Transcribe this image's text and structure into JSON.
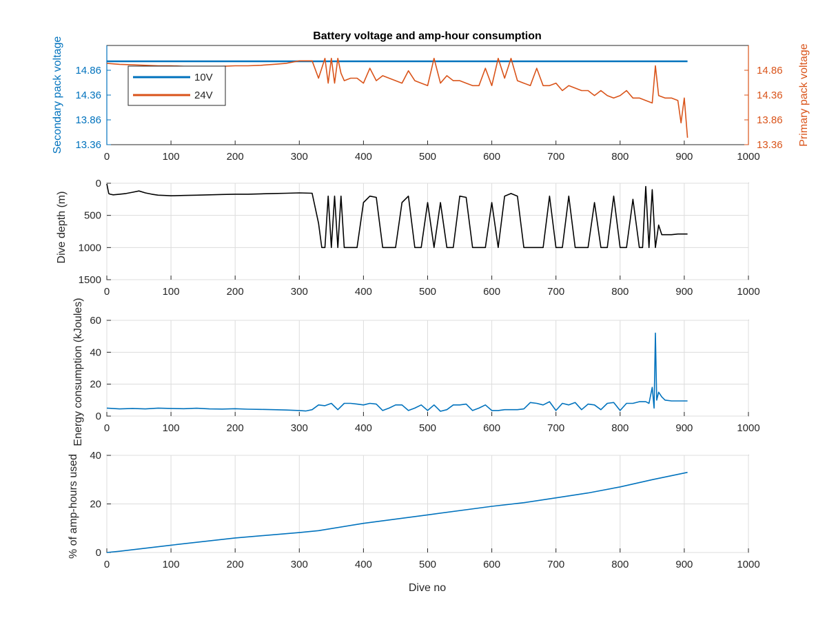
{
  "colors": {
    "blue": "#0072BD",
    "orange": "#D95319",
    "black": "#000000",
    "grid": "#dcdcdc",
    "axis": "#262626"
  },
  "chart_data": [
    {
      "id": "voltage",
      "type": "line",
      "title": "Battery voltage and amp-hour consumption",
      "xlabel": "",
      "ylabel_left": "Secondary pack voltage",
      "ylabel_right": "Primary pack voltage",
      "xlim": [
        0,
        1000
      ],
      "ylim": [
        13.36,
        15.36
      ],
      "x_ticks": [
        0,
        100,
        200,
        300,
        400,
        500,
        600,
        700,
        800,
        900,
        1000
      ],
      "y_ticks": [
        13.36,
        13.86,
        14.36,
        14.86
      ],
      "y_tick_labels": [
        "13.36",
        "13.86",
        "14.36",
        "14.86"
      ],
      "grid": false,
      "legend": "top-left",
      "series": [
        {
          "name": "10V",
          "axis": "left",
          "color": "#0072BD",
          "x": [
            0,
            905
          ],
          "y": [
            15.04,
            15.04
          ]
        },
        {
          "name": "24V",
          "axis": "right",
          "color": "#D95319",
          "x": [
            0,
            20,
            40,
            60,
            80,
            100,
            120,
            140,
            160,
            180,
            200,
            220,
            240,
            260,
            280,
            300,
            320,
            330,
            340,
            345,
            350,
            355,
            360,
            365,
            370,
            380,
            390,
            400,
            410,
            420,
            430,
            440,
            450,
            460,
            470,
            480,
            490,
            500,
            510,
            520,
            530,
            540,
            550,
            560,
            570,
            580,
            590,
            600,
            610,
            620,
            630,
            640,
            650,
            660,
            670,
            680,
            690,
            700,
            710,
            720,
            730,
            740,
            750,
            760,
            770,
            780,
            790,
            800,
            810,
            820,
            830,
            840,
            850,
            855,
            860,
            870,
            880,
            890,
            895,
            900,
            905
          ],
          "y": [
            15.0,
            14.98,
            14.97,
            14.96,
            14.95,
            14.95,
            14.94,
            14.94,
            14.94,
            14.94,
            14.95,
            14.95,
            14.96,
            14.98,
            15.0,
            15.05,
            15.05,
            14.7,
            15.1,
            14.6,
            15.1,
            14.6,
            15.1,
            14.8,
            14.65,
            14.7,
            14.7,
            14.6,
            14.9,
            14.65,
            14.75,
            14.7,
            14.65,
            14.6,
            14.85,
            14.65,
            14.6,
            14.55,
            15.1,
            14.6,
            14.75,
            14.65,
            14.65,
            14.6,
            14.55,
            14.55,
            14.9,
            14.55,
            15.1,
            14.7,
            15.1,
            14.65,
            14.6,
            14.55,
            14.9,
            14.55,
            14.55,
            14.6,
            14.45,
            14.55,
            14.5,
            14.45,
            14.45,
            14.35,
            14.45,
            14.35,
            14.3,
            14.35,
            14.45,
            14.3,
            14.3,
            14.25,
            14.2,
            14.95,
            14.35,
            14.3,
            14.3,
            14.25,
            13.8,
            14.3,
            13.5
          ]
        }
      ]
    },
    {
      "id": "depth",
      "type": "line",
      "xlabel": "",
      "ylabel": "Dive depth (m)",
      "xlim": [
        0,
        1000
      ],
      "ylim": [
        0,
        1500
      ],
      "y_reversed": true,
      "x_ticks": [
        0,
        100,
        200,
        300,
        400,
        500,
        600,
        700,
        800,
        900,
        1000
      ],
      "y_ticks": [
        0,
        500,
        1000,
        1500
      ],
      "grid": true,
      "series": [
        {
          "name": "",
          "color": "#000000",
          "x": [
            0,
            3,
            5,
            10,
            20,
            30,
            40,
            50,
            60,
            70,
            80,
            90,
            100,
            120,
            140,
            160,
            180,
            200,
            220,
            240,
            260,
            280,
            300,
            320,
            330,
            335,
            340,
            345,
            350,
            355,
            360,
            365,
            370,
            380,
            390,
            400,
            410,
            420,
            430,
            440,
            450,
            460,
            470,
            480,
            490,
            500,
            510,
            520,
            530,
            540,
            550,
            560,
            570,
            580,
            590,
            600,
            610,
            620,
            630,
            640,
            650,
            660,
            670,
            680,
            690,
            700,
            710,
            720,
            730,
            740,
            750,
            760,
            770,
            780,
            790,
            800,
            810,
            820,
            830,
            835,
            840,
            845,
            850,
            855,
            860,
            865,
            870,
            880,
            890,
            905
          ],
          "y": [
            10,
            160,
            170,
            180,
            170,
            160,
            140,
            120,
            150,
            170,
            185,
            190,
            195,
            190,
            185,
            180,
            175,
            170,
            170,
            165,
            160,
            155,
            150,
            155,
            620,
            1000,
            1000,
            200,
            1000,
            200,
            1000,
            200,
            1000,
            1000,
            1000,
            300,
            200,
            220,
            1000,
            1000,
            1000,
            300,
            200,
            1000,
            1000,
            300,
            1000,
            300,
            1000,
            1000,
            200,
            220,
            1000,
            1000,
            1000,
            300,
            1000,
            200,
            160,
            200,
            1000,
            1000,
            1000,
            1000,
            200,
            1000,
            1000,
            200,
            1000,
            1000,
            1000,
            300,
            1000,
            1000,
            200,
            1000,
            1000,
            250,
            1000,
            1000,
            50,
            1000,
            100,
            1000,
            650,
            800,
            800,
            800,
            790,
            790
          ]
        }
      ]
    },
    {
      "id": "energy",
      "type": "line",
      "xlabel": "",
      "ylabel": "Energy consumption (kJoules)",
      "xlim": [
        0,
        1000
      ],
      "ylim": [
        0,
        60
      ],
      "x_ticks": [
        0,
        100,
        200,
        300,
        400,
        500,
        600,
        700,
        800,
        900,
        1000
      ],
      "y_ticks": [
        0,
        20,
        40,
        60
      ],
      "grid": true,
      "series": [
        {
          "name": "",
          "color": "#0072BD",
          "x": [
            0,
            20,
            40,
            60,
            80,
            100,
            120,
            140,
            160,
            180,
            200,
            220,
            240,
            260,
            280,
            300,
            310,
            320,
            330,
            340,
            350,
            360,
            370,
            380,
            390,
            400,
            410,
            420,
            430,
            440,
            450,
            460,
            470,
            480,
            490,
            500,
            510,
            520,
            530,
            540,
            550,
            560,
            570,
            580,
            590,
            600,
            610,
            620,
            630,
            640,
            650,
            660,
            670,
            680,
            690,
            700,
            710,
            720,
            730,
            740,
            750,
            760,
            770,
            780,
            790,
            800,
            810,
            820,
            830,
            840,
            845,
            850,
            853,
            855,
            857,
            860,
            865,
            870,
            880,
            890,
            905
          ],
          "y": [
            5,
            4.5,
            4.8,
            4.5,
            5,
            4.8,
            4.6,
            4.9,
            4.5,
            4.4,
            4.6,
            4.3,
            4.2,
            4.0,
            3.8,
            3.5,
            3.2,
            4,
            7,
            6.5,
            8,
            4,
            8,
            8,
            7.5,
            7,
            8,
            7.5,
            3.5,
            5,
            7,
            7,
            3.5,
            5,
            7,
            3.5,
            7,
            3,
            4,
            7,
            7,
            7.5,
            3.5,
            5,
            7,
            3.5,
            3.5,
            4,
            4,
            4,
            4.5,
            8.5,
            8,
            7,
            9,
            3.5,
            8,
            7,
            8.5,
            4,
            7.5,
            7,
            4,
            8,
            8.5,
            3.5,
            8,
            8,
            9,
            9,
            8,
            18,
            5,
            52,
            10,
            15,
            12,
            10,
            9.5,
            9.5,
            9.5
          ]
        }
      ]
    },
    {
      "id": "amp_hours",
      "type": "line",
      "xlabel": "Dive no",
      "ylabel": "% of amp-hours used",
      "xlim": [
        0,
        1000
      ],
      "ylim": [
        0,
        40
      ],
      "x_ticks": [
        0,
        100,
        200,
        300,
        400,
        500,
        600,
        700,
        800,
        900,
        1000
      ],
      "y_ticks": [
        0,
        20,
        40
      ],
      "grid": true,
      "series": [
        {
          "name": "",
          "color": "#0072BD",
          "x": [
            0,
            20,
            100,
            200,
            300,
            330,
            400,
            500,
            600,
            650,
            700,
            750,
            800,
            850,
            905
          ],
          "y": [
            0,
            0.5,
            3,
            6,
            8.2,
            9,
            12,
            15.5,
            19,
            20.5,
            22.5,
            24.5,
            27,
            30,
            33
          ]
        }
      ]
    }
  ]
}
